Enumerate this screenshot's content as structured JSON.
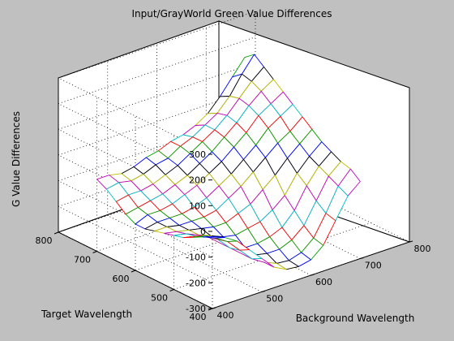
{
  "chart_data": {
    "type": "surface",
    "title": "Input/GrayWorld Green Value Differences",
    "xlabel": "Background Wavelength",
    "ylabel": "Target Wavelength",
    "zlabel": "G Value Differences",
    "xlim": [
      400,
      800
    ],
    "ylim": [
      400,
      800
    ],
    "zlim": [
      -300,
      300
    ],
    "xticks": [
      400,
      500,
      600,
      700,
      800
    ],
    "yticks": [
      400,
      500,
      600,
      700,
      800
    ],
    "zticks": [
      -300,
      -200,
      -100,
      0,
      100,
      200,
      300
    ],
    "grid": true,
    "x": [
      400,
      425,
      450,
      475,
      500,
      525,
      550,
      575,
      600,
      625,
      650,
      675,
      700
    ],
    "y": [
      400,
      425,
      450,
      475,
      500,
      525,
      550,
      575,
      600,
      625,
      650,
      675,
      700
    ],
    "z": [
      [
        -20,
        -40,
        -70,
        -120,
        -170,
        -220,
        -245,
        -250,
        -240,
        -200,
        -120,
        -40,
        0
      ],
      [
        -40,
        -60,
        -90,
        -140,
        -190,
        -220,
        -240,
        -245,
        -230,
        -190,
        -110,
        -20,
        30
      ],
      [
        -60,
        -70,
        -100,
        -150,
        -190,
        -210,
        -220,
        -220,
        -200,
        -160,
        -80,
        0,
        40
      ],
      [
        -80,
        -90,
        -110,
        -150,
        -180,
        -200,
        -200,
        -190,
        -170,
        -120,
        -40,
        20,
        60
      ],
      [
        -90,
        -100,
        -120,
        -140,
        -160,
        -170,
        -160,
        -150,
        -120,
        -80,
        -10,
        40,
        80
      ],
      [
        -100,
        -110,
        -120,
        -130,
        -140,
        -140,
        -120,
        -100,
        -60,
        -20,
        30,
        70,
        110
      ],
      [
        -110,
        -110,
        -120,
        -120,
        -120,
        -110,
        -80,
        -50,
        -10,
        30,
        70,
        100,
        140
      ],
      [
        -120,
        -110,
        -110,
        -110,
        -100,
        -80,
        -50,
        -20,
        20,
        60,
        110,
        140,
        170
      ],
      [
        -120,
        -100,
        -100,
        -90,
        -70,
        -50,
        -20,
        10,
        50,
        90,
        140,
        170,
        200
      ],
      [
        -100,
        -90,
        -80,
        -70,
        -50,
        -30,
        0,
        30,
        70,
        110,
        160,
        200,
        230
      ],
      [
        -70,
        -60,
        -60,
        -50,
        -30,
        -10,
        20,
        50,
        80,
        120,
        170,
        220,
        260
      ],
      [
        -40,
        -30,
        -40,
        -30,
        -10,
        0,
        30,
        50,
        80,
        110,
        160,
        230,
        290
      ],
      [
        -20,
        -20,
        -30,
        -20,
        0,
        10,
        30,
        40,
        60,
        90,
        140,
        200,
        260
      ]
    ]
  }
}
